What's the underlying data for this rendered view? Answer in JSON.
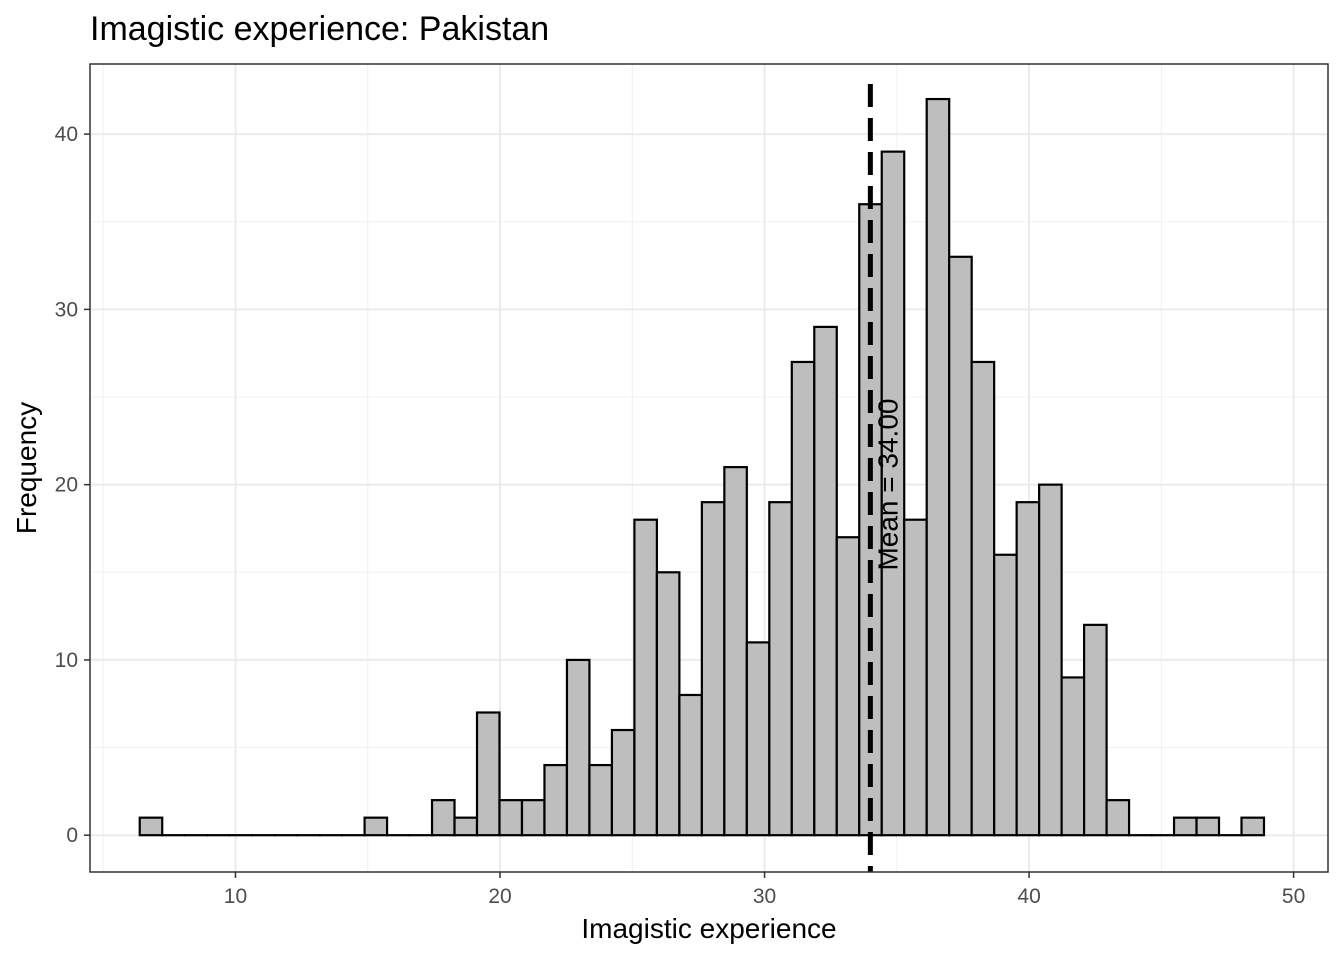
{
  "chart_data": {
    "type": "bar",
    "title": "Imagistic experience: Pakistan",
    "xlabel": "Imagistic experience",
    "ylabel": "Frequency",
    "xlim": [
      4.5,
      51.3
    ],
    "ylim": [
      -2.1,
      44.0
    ],
    "x_ticks": [
      10,
      20,
      30,
      40,
      50
    ],
    "y_ticks": [
      0,
      10,
      20,
      30,
      40
    ],
    "grid": true,
    "bin_width": 0.85,
    "bin_start": 6.38,
    "values": [
      1,
      0,
      0,
      0,
      0,
      0,
      0,
      0,
      0,
      0,
      1,
      0,
      0,
      2,
      1,
      7,
      2,
      2,
      4,
      10,
      4,
      6,
      18,
      15,
      8,
      19,
      21,
      11,
      19,
      27,
      29,
      17,
      36,
      39,
      18,
      42,
      33,
      27,
      16,
      19,
      20,
      9,
      12,
      2,
      0,
      0,
      1,
      1,
      0,
      1
    ],
    "fill_color": "#bebebe",
    "edge_color": "#000000",
    "mean_line": {
      "x": 34.0,
      "label": "Mean = 34.00"
    }
  }
}
